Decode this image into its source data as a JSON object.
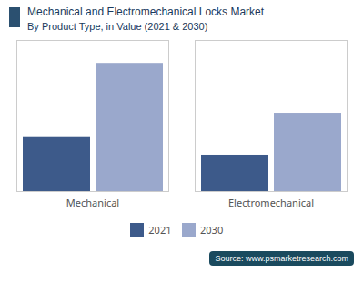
{
  "chart_data": {
    "type": "bar",
    "title": "Mechanical and Electromechanical Locks Market",
    "subtitle": "By Product Type, in Value (2021 & 2030)",
    "categories": [
      "Mechanical",
      "Electromechanical"
    ],
    "series": [
      {
        "name": "2021",
        "color": "#3d5a8a",
        "values": [
          0.4,
          0.27
        ]
      },
      {
        "name": "2030",
        "color": "#9aa8cc",
        "values": [
          0.95,
          0.58
        ]
      }
    ],
    "ylim": [
      0,
      1.12
    ],
    "tick_labels": "x",
    "grid": false,
    "legend": "bottom",
    "annotations": [
      "Source: www.psmarketresearch.com"
    ]
  }
}
